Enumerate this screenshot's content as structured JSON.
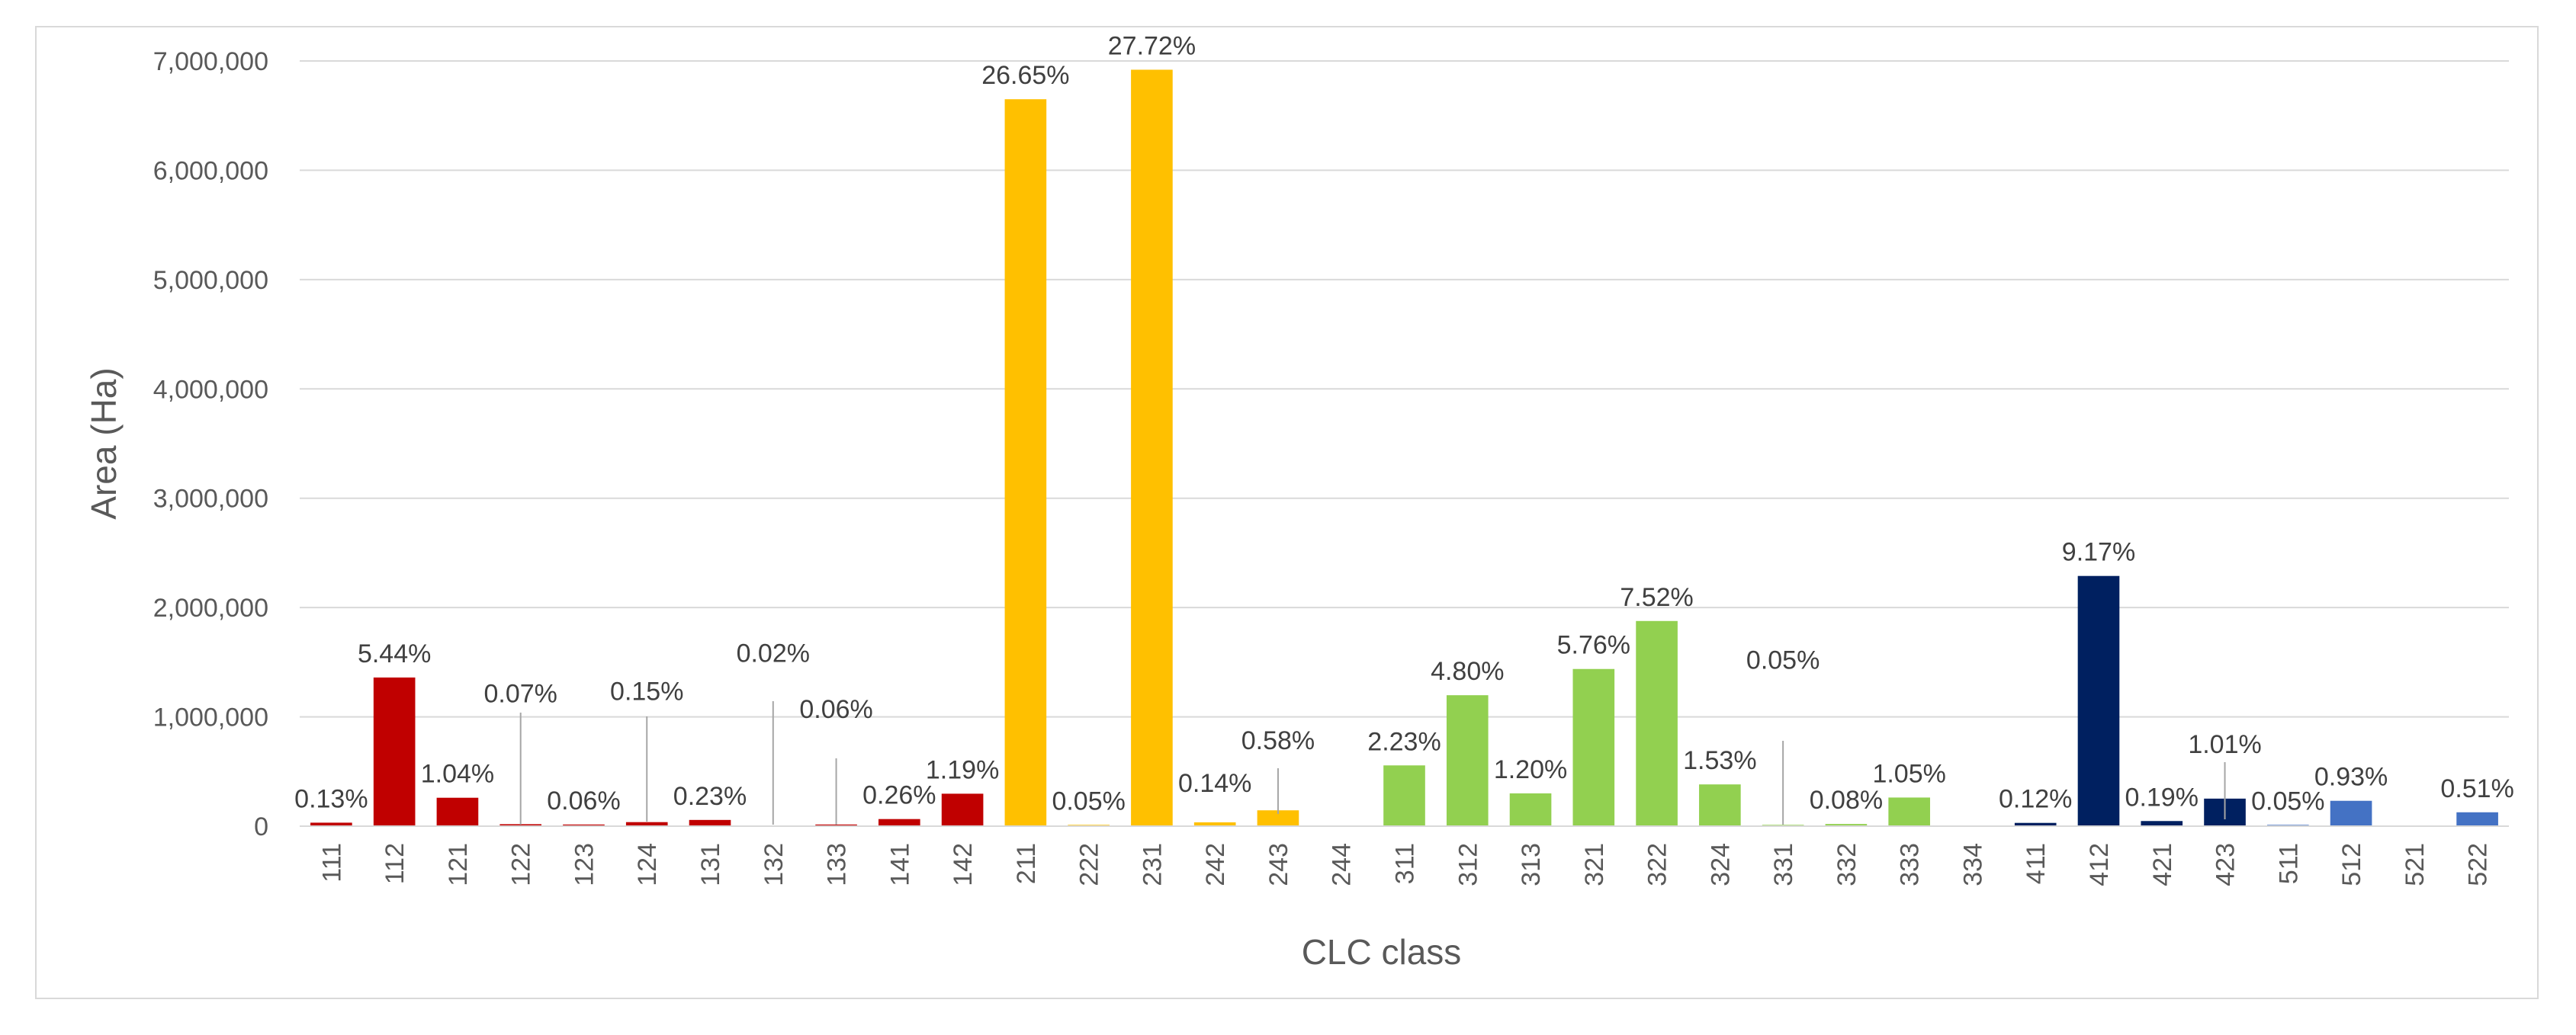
{
  "chart_data": {
    "type": "bar",
    "title": "",
    "xlabel": "CLC class",
    "ylabel": "Area (Ha)",
    "ylim": [
      0,
      7000000
    ],
    "yticks": [
      0,
      1000000,
      2000000,
      3000000,
      4000000,
      5000000,
      6000000,
      7000000
    ],
    "ytick_labels": [
      "0",
      "1,000,000",
      "2,000,000",
      "3,000,000",
      "4,000,000",
      "5,000,000",
      "6,000,000",
      "7,000,000"
    ],
    "grid": true,
    "legend": "none",
    "categories": [
      "111",
      "112",
      "121",
      "122",
      "123",
      "124",
      "131",
      "132",
      "133",
      "141",
      "142",
      "211",
      "222",
      "231",
      "242",
      "243",
      "244",
      "311",
      "312",
      "313",
      "321",
      "322",
      "324",
      "331",
      "332",
      "333",
      "334",
      "411",
      "412",
      "421",
      "423",
      "511",
      "512",
      "521",
      "522"
    ],
    "values": [
      32000,
      1360000,
      260000,
      18000,
      15000,
      37000,
      57000,
      5000,
      15000,
      65000,
      297000,
      6650000,
      12000,
      6920000,
      35000,
      145000,
      0,
      556000,
      1198000,
      300000,
      1438000,
      1877000,
      382000,
      12000,
      20000,
      262000,
      0,
      30000,
      2289000,
      47000,
      252000,
      12000,
      232000,
      0,
      127000
    ],
    "data_labels": [
      "0.13%",
      "5.44%",
      "1.04%",
      "0.07%",
      "0.06%",
      "0.15%",
      "0.23%",
      "0.02%",
      "0.06%",
      "0.26%",
      "1.19%",
      "26.65%",
      "0.05%",
      "27.72%",
      "0.14%",
      "0.58%",
      "",
      "2.23%",
      "4.80%",
      "1.20%",
      "5.76%",
      "7.52%",
      "1.53%",
      "0.05%",
      "0.08%",
      "1.05%",
      "",
      "0.12%",
      "9.17%",
      "0.19%",
      "1.01%",
      "0.05%",
      "0.93%",
      "",
      "0.51%"
    ],
    "bar_colors": [
      "#c00000",
      "#c00000",
      "#c00000",
      "#c00000",
      "#c00000",
      "#c00000",
      "#c00000",
      "#c00000",
      "#c00000",
      "#c00000",
      "#c00000",
      "#ffc000",
      "#ffc000",
      "#ffc000",
      "#ffc000",
      "#ffc000",
      "#ffc000",
      "#92d050",
      "#92d050",
      "#92d050",
      "#92d050",
      "#92d050",
      "#92d050",
      "#92d050",
      "#92d050",
      "#92d050",
      "#92d050",
      "#002060",
      "#002060",
      "#002060",
      "#002060",
      "#4472c4",
      "#4472c4",
      "#4472c4",
      "#4472c4"
    ],
    "colors": {
      "gridline": "#d9d9d9",
      "tick_text": "#595959",
      "label_text": "#404040",
      "leader_line": "#a6a6a6"
    }
  }
}
